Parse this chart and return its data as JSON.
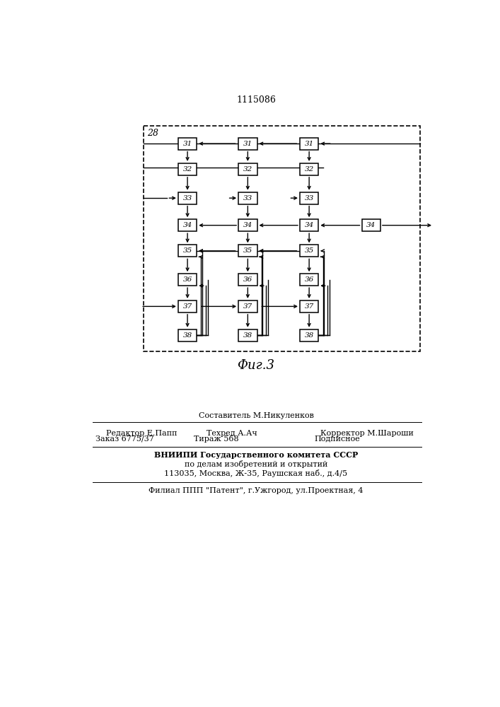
{
  "title": "1115086",
  "fig_label": "Фиг.3",
  "background_color": "#ffffff",
  "line_color": "#000000",
  "box_color": "#ffffff",
  "fig_size": [
    7.07,
    10.0
  ],
  "dpi": 100,
  "bottom_text": {
    "line1_center": "Составитель М.Никуленков",
    "line2_left": "Редактор Е.Папп",
    "line2_mid": "Техред А.Ач",
    "line2_right": "Корректор М.Шароши",
    "line3_left": "Заказ 6775/37",
    "line3_mid": "Тираж 568",
    "line3_right": "Подписное",
    "line4": "ВНИИПИ Государственного комитета СССР",
    "line5": "по делам изобретений и открытий",
    "line6": "113035, Москва, Ж-35, Раушская наб., д.4/5",
    "line7": "Филиал ППП \"Патент\", г.Ужгород, ул.Проектная, 4"
  }
}
